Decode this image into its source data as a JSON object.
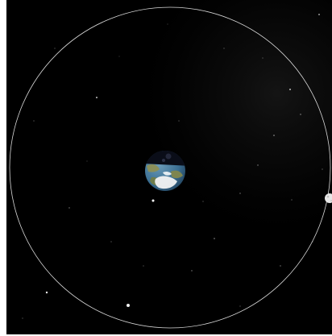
{
  "scene": {
    "background_color": "#000000",
    "orbit_color": "#d9d9d9",
    "earth": {
      "label": "",
      "ocean_color": "#3b6f93",
      "land_color": "#8a8f5a",
      "ice_color": "#f2f2f2",
      "night_color": "#0a0d18"
    },
    "moon": {
      "label": "",
      "color": "#e6e6e6"
    }
  }
}
